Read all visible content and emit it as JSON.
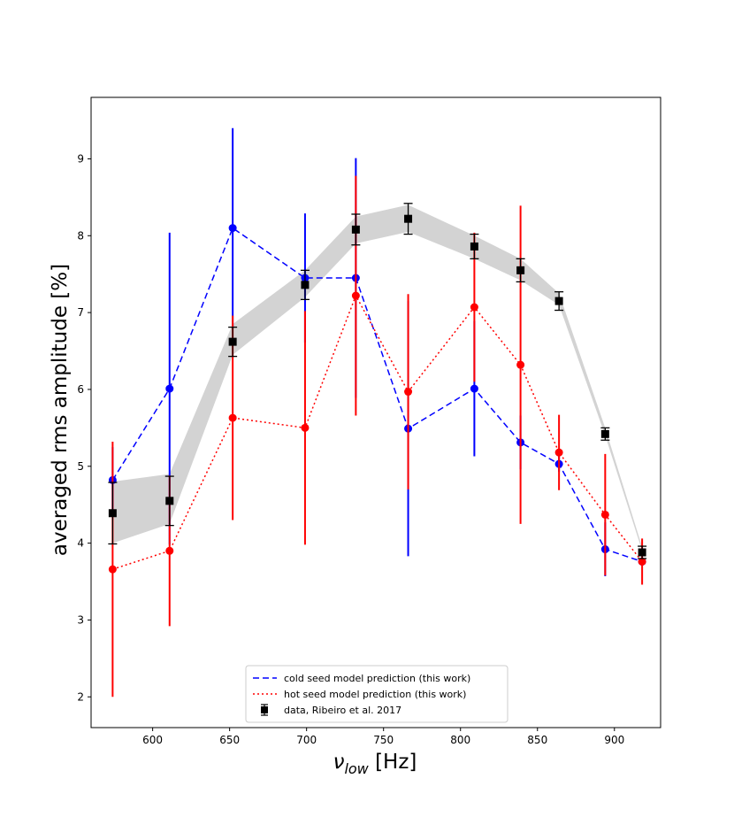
{
  "chart_data": {
    "type": "line",
    "title": "",
    "xlabel": "ν_low [Hz]",
    "xlabel_main": "ν",
    "xlabel_sub": "low",
    "xlabel_unit": "[Hz]",
    "ylabel": "averaged rms amplitude [%]",
    "xlim": [
      560,
      930
    ],
    "ylim": [
      1.6,
      9.8
    ],
    "xticks": [
      600,
      650,
      700,
      750,
      800,
      850,
      900
    ],
    "yticks": [
      2,
      3,
      4,
      5,
      6,
      7,
      8,
      9
    ],
    "grid": false,
    "legend_position": "bottom-center",
    "band": {
      "color": "#d3d3d3",
      "x": [
        574,
        611,
        652,
        699,
        732,
        766,
        809,
        839,
        864,
        894,
        918
      ],
      "lower": [
        4.0,
        4.25,
        6.45,
        7.2,
        7.9,
        8.05,
        7.7,
        7.42,
        7.1,
        5.4,
        3.9
      ],
      "upper": [
        4.8,
        4.9,
        6.85,
        7.55,
        8.25,
        8.4,
        8.0,
        7.7,
        7.25,
        5.5,
        3.95
      ]
    },
    "series": [
      {
        "name": "cold seed model prediction (this work)",
        "color": "#0000ff",
        "dash": "7,4",
        "x": [
          574,
          611,
          652,
          699,
          732,
          766,
          809,
          839,
          864,
          894,
          918
        ],
        "y": [
          4.82,
          6.01,
          8.1,
          7.45,
          7.45,
          5.49,
          6.01,
          5.31,
          5.03,
          3.92,
          3.76
        ],
        "err": [
          0.43,
          2.03,
          1.3,
          0.84,
          1.56,
          1.66,
          0.88,
          0.35,
          0.1,
          0.35,
          0.05
        ]
      },
      {
        "name": "hot seed model prediction (this work)",
        "color": "#ff0000",
        "dash": "2,3",
        "x": [
          574,
          611,
          652,
          699,
          732,
          766,
          809,
          839,
          864,
          894,
          918
        ],
        "y": [
          3.66,
          3.9,
          5.63,
          5.5,
          7.22,
          5.97,
          7.07,
          6.32,
          5.18,
          4.37,
          3.76
        ],
        "err": [
          1.66,
          0.98,
          1.33,
          1.52,
          1.56,
          1.27,
          0.97,
          2.07,
          0.49,
          0.79,
          0.3
        ]
      },
      {
        "name": "data, Ribeiro et al. 2017",
        "color": "#000000",
        "marker": "square",
        "x": [
          574,
          611,
          652,
          699,
          732,
          766,
          809,
          839,
          864,
          894,
          918
        ],
        "y": [
          4.39,
          4.55,
          6.62,
          7.36,
          8.08,
          8.22,
          7.86,
          7.55,
          7.15,
          5.42,
          3.88
        ],
        "err": [
          0.4,
          0.32,
          0.19,
          0.19,
          0.2,
          0.2,
          0.16,
          0.15,
          0.12,
          0.08,
          0.08
        ]
      }
    ]
  }
}
